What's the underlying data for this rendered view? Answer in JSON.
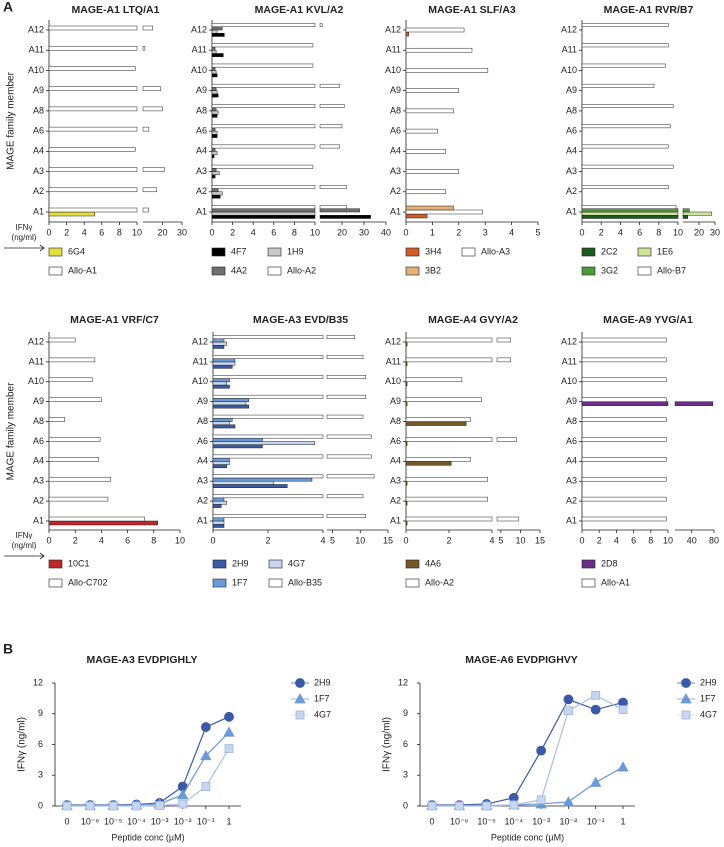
{
  "figure_labels": [
    "A",
    "B"
  ],
  "chart_data": [
    {
      "type": "hbar",
      "title": "MAGE-A1 LTQ/A1",
      "ylabel": "MAGE family member",
      "xlabel": [
        "IFNγ",
        "(ng/ml)"
      ],
      "categories": [
        "A1",
        "A2",
        "A3",
        "A4",
        "A6",
        "A8",
        "A9",
        "A10",
        "A11",
        "A12"
      ],
      "xlim": [
        0,
        10
      ],
      "xticks": [
        0,
        2,
        4,
        6,
        8,
        10
      ],
      "x2lim": [
        10,
        30
      ],
      "x2ticks": [
        20,
        30
      ],
      "series": [
        {
          "name": "6G4",
          "color": "#e4df3c",
          "values": [
            5.2,
            0,
            0,
            0,
            0,
            0,
            0,
            0,
            0,
            0
          ]
        },
        {
          "name": "Allo-A1",
          "color": "#ffffff",
          "values": [
            13,
            17,
            21,
            9.8,
            13,
            20,
            19,
            9.8,
            11,
            15
          ]
        }
      ]
    },
    {
      "type": "hbar",
      "title": "MAGE-A1 KVL/A2",
      "categories": [
        "A1",
        "A2",
        "A3",
        "A4",
        "A6",
        "A8",
        "A9",
        "A10",
        "A11",
        "A12"
      ],
      "xlim": [
        0,
        10
      ],
      "xticks": [
        0,
        2,
        4,
        6,
        8,
        10
      ],
      "x2lim": [
        10,
        40
      ],
      "x2ticks": [
        20,
        30,
        40
      ],
      "series": [
        {
          "name": "4F7",
          "color": "#000000",
          "values": [
            33,
            0.8,
            0.3,
            0.2,
            0.5,
            0.5,
            0.6,
            0.5,
            1.1,
            1.2
          ]
        },
        {
          "name": "1H9",
          "color": "#c8c8c8",
          "values": [
            10,
            1.0,
            0.7,
            0.5,
            0.5,
            0.6,
            0.5,
            0.4,
            0.4,
            0.5
          ]
        },
        {
          "name": "4A2",
          "color": "#6e6e6e",
          "values": [
            28,
            0.6,
            0.4,
            0.3,
            0.3,
            0.4,
            0.4,
            0.3,
            0.3,
            1.0
          ]
        },
        {
          "name": "Allo-A2",
          "color": "#ffffff",
          "values": [
            22,
            22,
            9.8,
            19,
            20,
            21,
            19,
            9.8,
            9.8,
            11
          ]
        }
      ]
    },
    {
      "type": "hbar",
      "title": "MAGE-A1 SLF/A3",
      "categories": [
        "A1",
        "A2",
        "A3",
        "A4",
        "A6",
        "A8",
        "A9",
        "A10",
        "A11",
        "A12"
      ],
      "xlim": [
        0,
        5
      ],
      "xticks": [
        0,
        1,
        2,
        3,
        4,
        5
      ],
      "series": [
        {
          "name": "3H4",
          "color": "#d05a28",
          "values": [
            0.8,
            0,
            0,
            0,
            0,
            0,
            0,
            0,
            0,
            0.1
          ]
        },
        {
          "name": "Allo-A3",
          "color": "#ffffff",
          "values": [
            2.9,
            1.5,
            2.0,
            1.5,
            1.2,
            1.8,
            2.0,
            3.1,
            2.5,
            2.2
          ]
        },
        {
          "name": "3B2",
          "color": "#e3b178",
          "values": [
            1.8,
            0,
            0,
            0,
            0,
            0,
            0,
            0,
            0,
            0
          ]
        }
      ]
    },
    {
      "type": "hbar",
      "title": "MAGE-A1 RVR/B7",
      "categories": [
        "A1",
        "A2",
        "A3",
        "A4",
        "A6",
        "A8",
        "A9",
        "A10",
        "A11",
        "A12"
      ],
      "xlim": [
        0,
        10
      ],
      "xticks": [
        0,
        2,
        4,
        6,
        8,
        10
      ],
      "x2lim": [
        10,
        30
      ],
      "x2ticks": [
        20,
        30
      ],
      "series": [
        {
          "name": "2C2",
          "color": "#1d5a1f",
          "values": [
            13,
            0,
            0,
            0,
            0,
            0,
            0,
            0,
            0,
            0
          ]
        },
        {
          "name": "1E6",
          "color": "#cde39b",
          "values": [
            28,
            0,
            0,
            0,
            0,
            0,
            0,
            0,
            0,
            0
          ]
        },
        {
          "name": "3G2",
          "color": "#4e9a3a",
          "values": [
            14,
            0,
            0,
            0,
            0,
            0,
            0,
            0,
            0,
            0
          ]
        },
        {
          "name": "Allo-B7",
          "color": "#ffffff",
          "values": [
            9.8,
            9.0,
            9.5,
            9.0,
            9.2,
            9.5,
            7.5,
            8.7,
            9.0,
            9.0
          ]
        }
      ]
    },
    {
      "type": "hbar",
      "title": "MAGE-A1 VRF/C7",
      "ylabel": "MAGE family member",
      "xlabel": [
        "IFNγ",
        "(ng/ml)"
      ],
      "categories": [
        "A1",
        "A2",
        "A3",
        "A4",
        "A6",
        "A8",
        "A9",
        "A10",
        "A11",
        "A12"
      ],
      "xlim": [
        0,
        10
      ],
      "xticks": [
        0,
        2,
        4,
        6,
        8,
        10
      ],
      "series": [
        {
          "name": "10C1",
          "color": "#c0272d",
          "values": [
            8.3,
            0,
            0,
            0,
            0,
            0,
            0,
            0,
            0,
            0
          ]
        },
        {
          "name": "Allo-C702",
          "color": "#ffffff",
          "values": [
            7.3,
            4.5,
            4.7,
            3.8,
            3.9,
            1.2,
            4.0,
            3.3,
            3.5,
            2.0
          ]
        }
      ]
    },
    {
      "type": "hbar",
      "title": "MAGE-A3 EVD/B35",
      "categories": [
        "A1",
        "A2",
        "A3",
        "A4",
        "A6",
        "A8",
        "A9",
        "A10",
        "A11",
        "A12"
      ],
      "xlim": [
        0,
        4
      ],
      "xticks": [
        0,
        2,
        4
      ],
      "x2lim": [
        4,
        15
      ],
      "x2ticks": [
        5,
        10,
        15
      ],
      "series": [
        {
          "name": "2H9",
          "color": "#3a59a6",
          "values": [
            0.4,
            0.3,
            2.7,
            0.5,
            1.8,
            0.8,
            1.3,
            0.6,
            0.7,
            0.4
          ]
        },
        {
          "name": "4G7",
          "color": "#c7d6ee",
          "values": [
            0.4,
            0.5,
            2.2,
            0.6,
            3.7,
            0.6,
            1.2,
            0.5,
            0.8,
            0.5
          ]
        },
        {
          "name": "1F7",
          "color": "#6b9ad6",
          "values": [
            0.4,
            0.4,
            3.6,
            0.6,
            1.8,
            0.7,
            1.3,
            0.6,
            0.8,
            0.4
          ]
        },
        {
          "name": "Allo-B35",
          "color": "#ffffff",
          "values": [
            11,
            10.5,
            12.5,
            12,
            12,
            10.5,
            11,
            11,
            10.5,
            9
          ]
        }
      ]
    },
    {
      "type": "hbar",
      "title": "MAGE-A4 GVY/A2",
      "categories": [
        "A1",
        "A2",
        "A3",
        "A4",
        "A6",
        "A8",
        "A9",
        "A10",
        "A11",
        "A12"
      ],
      "xlim": [
        0,
        4
      ],
      "xticks": [
        0,
        2,
        4
      ],
      "x2lim": [
        4,
        15
      ],
      "x2ticks": [
        5,
        10,
        15
      ],
      "series": [
        {
          "name": "4A6",
          "color": "#76582a",
          "values": [
            0.05,
            0.05,
            0.05,
            2.1,
            0.05,
            2.8,
            0.05,
            0.05,
            0.05,
            0.05
          ]
        },
        {
          "name": "Allo-A2",
          "color": "#ffffff",
          "values": [
            9.5,
            3.8,
            3.8,
            3.0,
            9,
            3.0,
            3.5,
            2.6,
            7.5,
            7.5
          ]
        }
      ]
    },
    {
      "type": "hbar",
      "title": "MAGE-A9 YVG/A1",
      "categories": [
        "A1",
        "A2",
        "A3",
        "A4",
        "A6",
        "A8",
        "A9",
        "A10",
        "A11",
        "A12"
      ],
      "xlim": [
        0,
        10
      ],
      "xticks": [
        0,
        2,
        4,
        6,
        8,
        10
      ],
      "x2lim": [
        10,
        80
      ],
      "x2ticks": [
        40,
        80
      ],
      "series": [
        {
          "name": "2D8",
          "color": "#6a2d88",
          "values": [
            0,
            0,
            0,
            0,
            0,
            0,
            78,
            0,
            0,
            0
          ]
        },
        {
          "name": "Allo-A1",
          "color": "#ffffff",
          "values": [
            9.8,
            9.8,
            9.8,
            9.8,
            9.8,
            9.8,
            9.8,
            9.8,
            9.8,
            9.8
          ]
        }
      ]
    },
    {
      "type": "line",
      "title": "MAGE-A3 EVDPIGHLY",
      "xlabel": "Peptide conc (µM)",
      "ylabel": "IFNγ (ng/ml)",
      "categories": [
        "0",
        "10⁻⁶",
        "10⁻⁵",
        "10⁻⁴",
        "10⁻³",
        "10⁻²",
        "10⁻¹",
        "1"
      ],
      "ylim": [
        0,
        12
      ],
      "yticks": [
        0,
        3,
        6,
        9,
        12
      ],
      "series": [
        {
          "name": "2H9",
          "color": "#3a59a6",
          "marker": "circle",
          "values": [
            0.1,
            0.1,
            0.1,
            0.15,
            0.3,
            1.9,
            7.7,
            8.7
          ]
        },
        {
          "name": "1F7",
          "color": "#6b9ad6",
          "marker": "triangle",
          "values": [
            0.05,
            0.05,
            0.05,
            0.1,
            0.2,
            1.1,
            4.9,
            7.2
          ]
        },
        {
          "name": "4G7",
          "color": "#c7d6ee",
          "marker": "square",
          "values": [
            0,
            0,
            0,
            0,
            0.05,
            0.2,
            1.9,
            5.6
          ]
        }
      ]
    },
    {
      "type": "line",
      "title": "MAGE-A6 EVDPIGHVY",
      "xlabel": "Peptide conc (µM)",
      "ylabel": "IFNγ (ng/ml)",
      "categories": [
        "0",
        "10⁻⁶",
        "10⁻⁵",
        "10⁻⁴",
        "10⁻³",
        "10⁻²",
        "10⁻¹",
        "1"
      ],
      "ylim": [
        0,
        12
      ],
      "yticks": [
        0,
        3,
        6,
        9,
        12
      ],
      "series": [
        {
          "name": "2H9",
          "color": "#3a59a6",
          "marker": "circle",
          "values": [
            0.1,
            0.1,
            0.2,
            0.8,
            5.4,
            10.4,
            9.4,
            10.1
          ]
        },
        {
          "name": "1F7",
          "color": "#6b9ad6",
          "marker": "triangle",
          "values": [
            0.05,
            0.05,
            0.05,
            0.1,
            0.2,
            0.4,
            2.3,
            3.8
          ]
        },
        {
          "name": "4G7",
          "color": "#c7d6ee",
          "marker": "square",
          "values": [
            0,
            0,
            0,
            0.1,
            0.6,
            9.3,
            10.8,
            9.4
          ]
        }
      ]
    }
  ]
}
